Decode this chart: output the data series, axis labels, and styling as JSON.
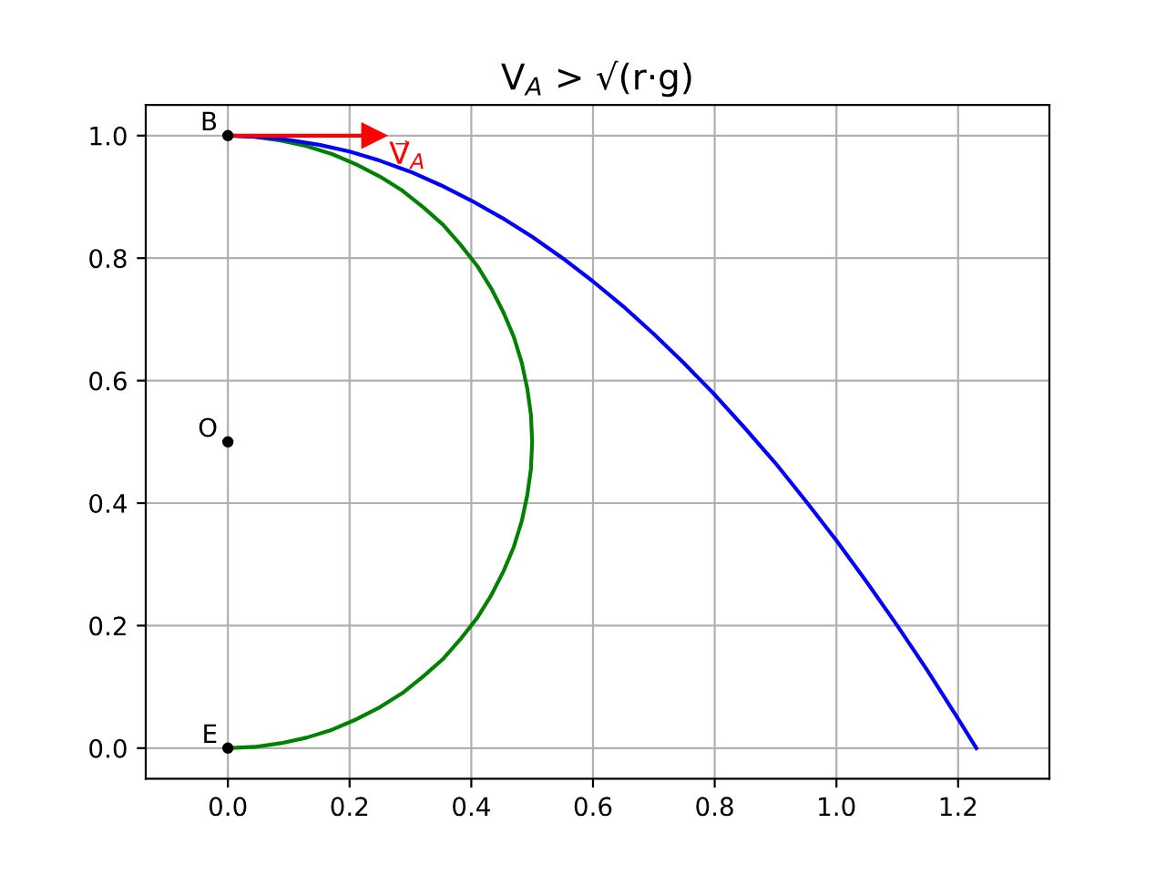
{
  "chart_data": {
    "type": "line",
    "title": "V$_{A}$ > √(r·g)",
    "xlim": [
      -0.135,
      1.35
    ],
    "ylim": [
      -0.05,
      1.05
    ],
    "xticks": [
      {
        "value": 0,
        "label": "0.0"
      },
      0.2,
      0.4,
      0.6,
      0.8,
      {
        "value": 1,
        "label": "1.0"
      },
      1.2
    ],
    "yticks": [
      {
        "value": 0,
        "label": "0.0"
      },
      0.2,
      0.4,
      0.6,
      0.8,
      {
        "value": 1,
        "label": "1.0"
      }
    ],
    "grid": true,
    "series": [
      {
        "type": "line",
        "color": "#008000",
        "x": [
          0,
          0.044,
          0.087,
          0.129,
          0.171,
          0.211,
          0.25,
          0.287,
          0.321,
          0.354,
          0.383,
          0.41,
          0.433,
          0.453,
          0.47,
          0.483,
          0.492,
          0.498,
          0.5,
          0.498,
          0.492,
          0.483,
          0.47,
          0.453,
          0.433,
          0.41,
          0.383,
          0.354,
          0.321,
          0.287,
          0.25,
          0.211,
          0.171,
          0.129,
          0.087,
          0.044,
          0
        ],
        "values": [
          1,
          0.998,
          0.992,
          0.983,
          0.97,
          0.953,
          0.933,
          0.91,
          0.883,
          0.854,
          0.821,
          0.787,
          0.75,
          0.711,
          0.671,
          0.629,
          0.587,
          0.544,
          0.5,
          0.456,
          0.413,
          0.371,
          0.329,
          0.289,
          0.25,
          0.213,
          0.179,
          0.146,
          0.117,
          0.09,
          0.067,
          0.047,
          0.03,
          0.017,
          0.008,
          0.002,
          0
        ]
      },
      {
        "type": "line",
        "color": "#0000ff",
        "x": [
          0,
          0.05,
          0.1,
          0.15,
          0.2,
          0.25,
          0.3,
          0.35,
          0.4,
          0.45,
          0.5,
          0.55,
          0.6,
          0.65,
          0.7,
          0.75,
          0.8,
          0.85,
          0.9,
          0.95,
          1.0,
          1.05,
          1.1,
          1.15,
          1.2,
          1.23
        ],
        "values": [
          1,
          0.998,
          0.993,
          0.985,
          0.974,
          0.959,
          0.941,
          0.919,
          0.894,
          0.866,
          0.835,
          0.8,
          0.762,
          0.721,
          0.676,
          0.628,
          0.577,
          0.522,
          0.465,
          0.403,
          0.339,
          0.271,
          0.2,
          0.126,
          0.048,
          0
        ]
      },
      {
        "color": "#ff0000",
        "marker": "triangle",
        "x": [
          0,
          0.24
        ],
        "values": [
          1,
          1
        ]
      },
      {
        "type": "scatter",
        "color": "#000000",
        "marker": "circle",
        "x": [
          0,
          0,
          0
        ],
        "values": [
          1,
          0.5,
          0
        ],
        "value_labels": [
          "B",
          "O",
          "E"
        ]
      }
    ],
    "annotations": [
      "V⃗$_{A}$"
    ]
  }
}
